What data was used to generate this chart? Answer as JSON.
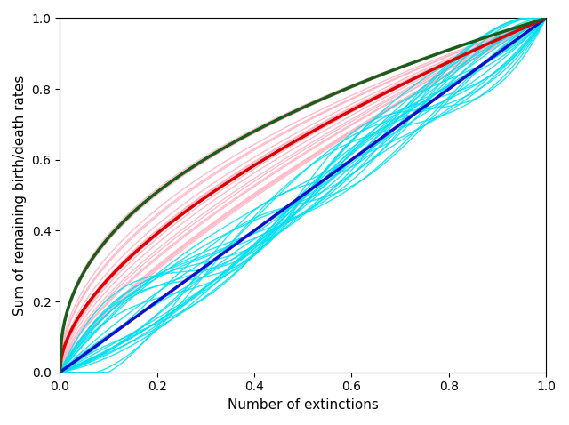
{
  "n_pink": 22,
  "n_cyan": 25,
  "n_points": 300,
  "pink_color": "#ffb0c0",
  "pink_alpha": 0.85,
  "cyan_color": "#00e0f0",
  "cyan_alpha": 0.85,
  "red_color": "#dd0000",
  "green_color": "#1a5c1a",
  "blue_color": "#1010cc",
  "red_lw": 2.5,
  "green_lw": 2.5,
  "blue_lw": 2.5,
  "pink_lw": 1.0,
  "cyan_lw": 1.0,
  "xlabel": "Number of extinctions",
  "ylabel": "Sum of remaining birth/death rates",
  "xlim": [
    0,
    1
  ],
  "ylim": [
    0,
    1
  ],
  "seed_pink": 7,
  "seed_cyan": 13
}
